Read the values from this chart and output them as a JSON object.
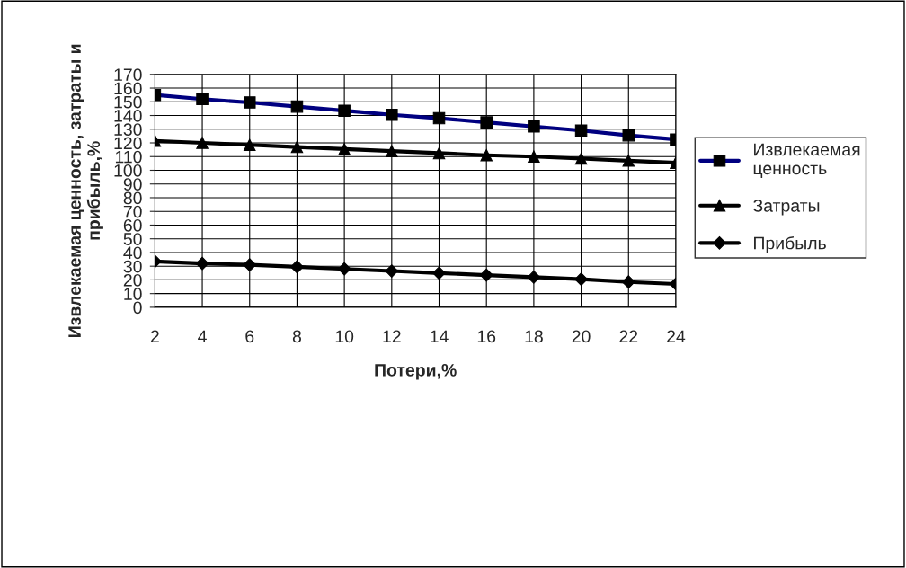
{
  "chart_data": {
    "type": "line",
    "xlabel": "Потери,%",
    "ylabel": "Извлекаемая ценность, затраты и прибыль,%",
    "x": [
      2,
      4,
      6,
      8,
      10,
      12,
      14,
      16,
      18,
      20,
      22,
      24
    ],
    "xlim": [
      2,
      24
    ],
    "xticks": [
      2,
      4,
      6,
      8,
      10,
      12,
      14,
      16,
      18,
      20,
      22,
      24
    ],
    "ylim": [
      0,
      170
    ],
    "yticks": [
      0,
      10,
      20,
      30,
      40,
      50,
      60,
      70,
      80,
      90,
      100,
      110,
      120,
      130,
      140,
      150,
      160,
      170
    ],
    "grid": true,
    "legend": "right",
    "series": [
      {
        "name": "Извлекаемая ценность",
        "color": "#000080",
        "marker": "square",
        "values": [
          155,
          152,
          149.5,
          146.5,
          143.5,
          140.5,
          138,
          135,
          132,
          129,
          125.5,
          122.5
        ]
      },
      {
        "name": "Затраты",
        "color": "#000000",
        "marker": "triangle",
        "values": [
          121.5,
          120,
          118.5,
          117,
          115.5,
          114,
          112.5,
          111,
          110,
          108.5,
          107,
          105.5
        ]
      },
      {
        "name": "Прибыль",
        "color": "#000000",
        "marker": "diamond",
        "values": [
          33.5,
          32,
          31,
          29.5,
          28,
          26.5,
          25,
          23.5,
          22,
          20.5,
          18.5,
          17
        ]
      }
    ]
  }
}
